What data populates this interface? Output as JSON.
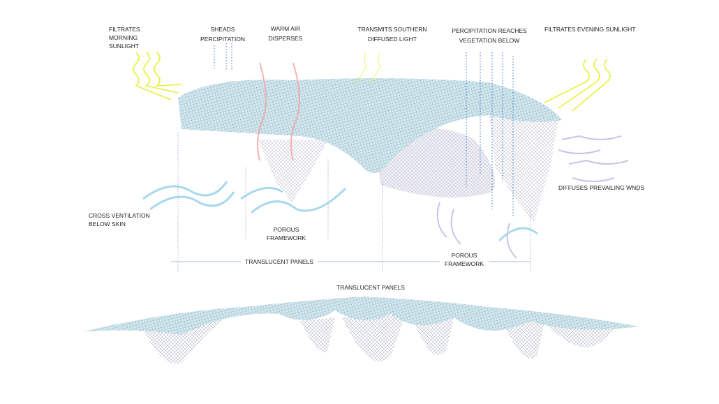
{
  "labels": {
    "morning": [
      "FILTRATES",
      "MORNING",
      "SUNLIGHT"
    ],
    "sheds": [
      "SHEADS",
      "PERCIPITATION"
    ],
    "warm_air": [
      "WARM AIR",
      "DISPERSES"
    ],
    "southern": [
      "TRANSMITS SOUTHERN",
      "DIFFUSED LIGHT"
    ],
    "vegetation": [
      "PERCIPITATION REACHES",
      "VEGETATION BELOW"
    ],
    "evening": "FILTRATES EVENING SUNLIGHT",
    "winds": "DIFFUSES PREVAILING WNDS",
    "ventilation": [
      "CROSS VENTILATION",
      "BELOW SKIN"
    ],
    "porous_left": [
      "POROUS",
      "FRAMEWORK"
    ],
    "porous_right": [
      "POROUS",
      "FRAMEWORK"
    ],
    "translucent_top": "TRANSLUCENT PANELS",
    "translucent_bottom": "TRANSLUCENT PANELS"
  },
  "colors": {
    "canopy": "#cfe9ef",
    "lattice": "#8a8fa8",
    "sunlight": "#e8f03a",
    "ventilation": "#a8d8ee",
    "warm_air": "#f2a0a0",
    "wind": "#c8c4ea",
    "precipitation": "#3a6fc0",
    "leader": "#8fa0c8"
  }
}
